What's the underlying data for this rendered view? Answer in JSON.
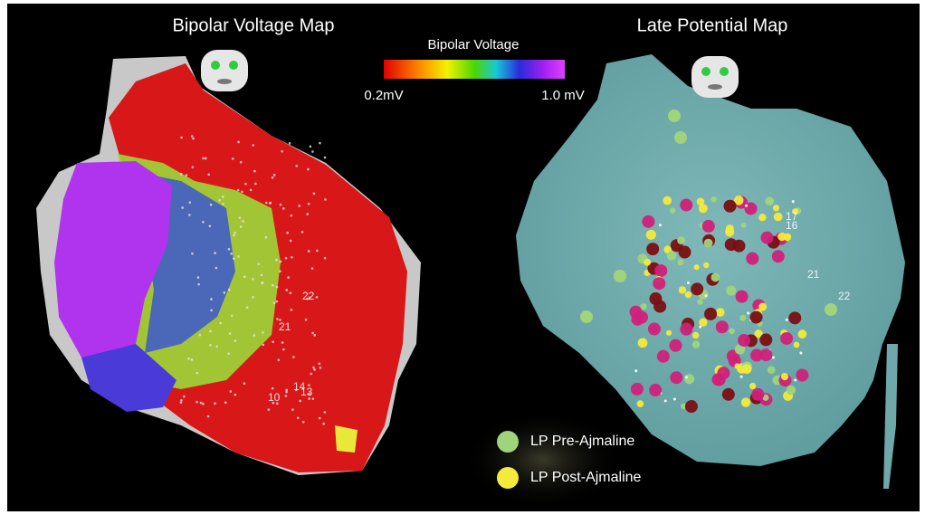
{
  "titles": {
    "left": "Bipolar Voltage Map",
    "right": "Late Potential Map"
  },
  "colorbar": {
    "title": "Bipolar Voltage",
    "min_label": "0.2mV",
    "max_label": "1.0 mV"
  },
  "left_map_labels": [
    "22",
    "21",
    "14",
    "13",
    "10"
  ],
  "right_map_labels": [
    "17",
    "16",
    "21",
    "22"
  ],
  "legend": [
    {
      "label": "LP Pre-Ajmaline",
      "color": "#9fd47c"
    },
    {
      "label": "LP Post-Ajmaline",
      "color": "#f4ea3c"
    }
  ]
}
